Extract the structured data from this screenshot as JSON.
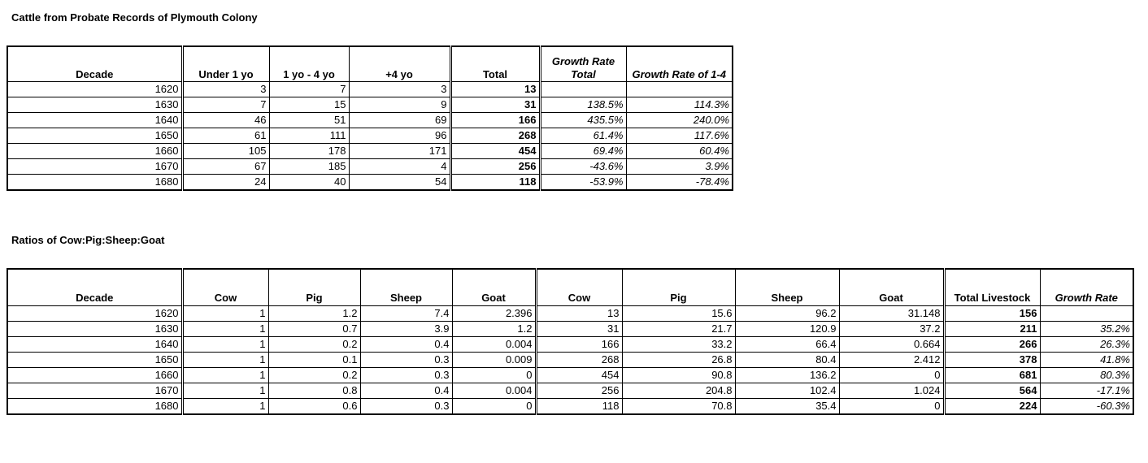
{
  "table1": {
    "title": "Cattle from Probate Records of Plymouth Colony",
    "headers": [
      "Decade",
      "Under 1 yo",
      "1 yo - 4 yo",
      "+4 yo",
      "Total",
      "Growth Rate Total",
      "Growth Rate of 1-4"
    ],
    "rows": [
      [
        "1620",
        "3",
        "7",
        "3",
        "13",
        "",
        ""
      ],
      [
        "1630",
        "7",
        "15",
        "9",
        "31",
        "138.5%",
        "114.3%"
      ],
      [
        "1640",
        "46",
        "51",
        "69",
        "166",
        "435.5%",
        "240.0%"
      ],
      [
        "1650",
        "61",
        "111",
        "96",
        "268",
        "61.4%",
        "117.6%"
      ],
      [
        "1660",
        "105",
        "178",
        "171",
        "454",
        "69.4%",
        "60.4%"
      ],
      [
        "1670",
        "67",
        "185",
        "4",
        "256",
        "-43.6%",
        "3.9%"
      ],
      [
        "1680",
        "24",
        "40",
        "54",
        "118",
        "-53.9%",
        "-78.4%"
      ]
    ]
  },
  "table2": {
    "title": "Ratios of Cow:Pig:Sheep:Goat",
    "headers": [
      "Decade",
      "Cow",
      "Pig",
      "Sheep",
      "Goat",
      "Cow",
      "Pig",
      "Sheep",
      "Goat",
      "Total Livestock",
      "Growth Rate"
    ],
    "rows": [
      [
        "1620",
        "1",
        "1.2",
        "7.4",
        "2.396",
        "13",
        "15.6",
        "96.2",
        "31.148",
        "156",
        ""
      ],
      [
        "1630",
        "1",
        "0.7",
        "3.9",
        "1.2",
        "31",
        "21.7",
        "120.9",
        "37.2",
        "211",
        "35.2%"
      ],
      [
        "1640",
        "1",
        "0.2",
        "0.4",
        "0.004",
        "166",
        "33.2",
        "66.4",
        "0.664",
        "266",
        "26.3%"
      ],
      [
        "1650",
        "1",
        "0.1",
        "0.3",
        "0.009",
        "268",
        "26.8",
        "80.4",
        "2.412",
        "378",
        "41.8%"
      ],
      [
        "1660",
        "1",
        "0.2",
        "0.3",
        "0",
        "454",
        "90.8",
        "136.2",
        "0",
        "681",
        "80.3%"
      ],
      [
        "1670",
        "1",
        "0.8",
        "0.4",
        "0.004",
        "256",
        "204.8",
        "102.4",
        "1.024",
        "564",
        "-17.1%"
      ],
      [
        "1680",
        "1",
        "0.6",
        "0.3",
        "0",
        "118",
        "70.8",
        "35.4",
        "0",
        "224",
        "-60.3%"
      ]
    ]
  }
}
